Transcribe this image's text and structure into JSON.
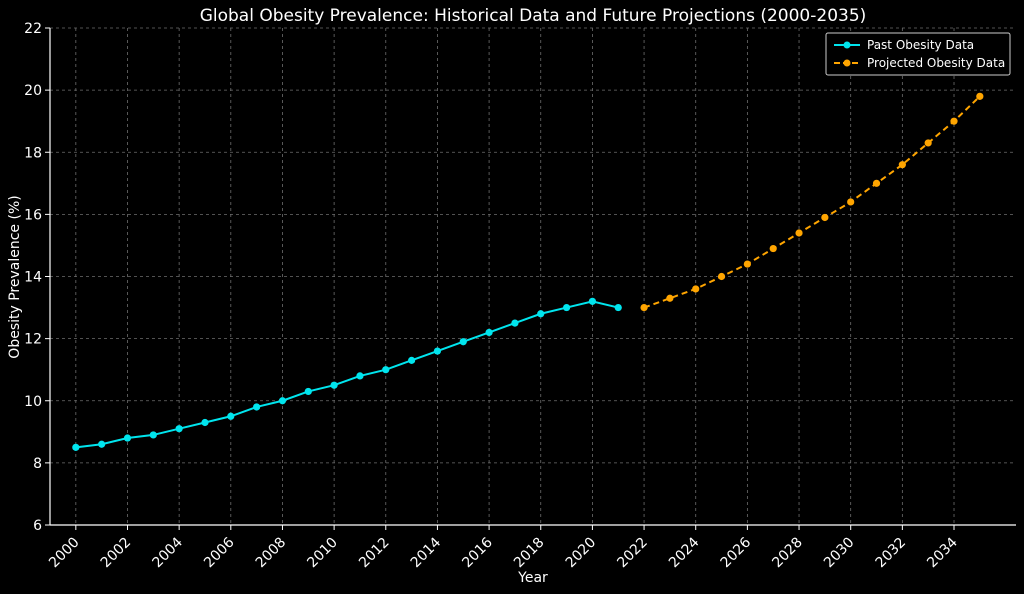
{
  "chart_data": {
    "type": "line",
    "title": "Global Obesity Prevalence: Historical Data and Future Projections (2000-2035)",
    "xlabel": "Year",
    "ylabel": "Obesity Prevalence (%)",
    "xlim": [
      1999,
      2036.4
    ],
    "ylim": [
      6,
      22
    ],
    "x_ticks": [
      "2000",
      "2002",
      "2004",
      "2006",
      "2008",
      "2010",
      "2012",
      "2014",
      "2016",
      "2018",
      "2020",
      "2022",
      "2024",
      "2026",
      "2028",
      "2030",
      "2032",
      "2034"
    ],
    "y_ticks": [
      "6",
      "8",
      "10",
      "12",
      "14",
      "16",
      "18",
      "20",
      "22"
    ],
    "grid": true,
    "legend_position": "top-right",
    "series": [
      {
        "name": "Past Obesity Data",
        "color": "#00e5ee",
        "line_style": "solid",
        "x": [
          2000,
          2001,
          2002,
          2003,
          2004,
          2005,
          2006,
          2007,
          2008,
          2009,
          2010,
          2011,
          2012,
          2013,
          2014,
          2015,
          2016,
          2017,
          2018,
          2019,
          2020,
          2021
        ],
        "y": [
          8.5,
          8.6,
          8.8,
          8.9,
          9.1,
          9.3,
          9.5,
          9.8,
          10.0,
          10.3,
          10.5,
          10.8,
          11.0,
          11.3,
          11.6,
          11.9,
          12.2,
          12.5,
          12.8,
          13.0,
          13.2,
          13.0
        ]
      },
      {
        "name": "Projected Obesity Data",
        "color": "#ffa500",
        "line_style": "dashed",
        "x": [
          2022,
          2023,
          2024,
          2025,
          2026,
          2027,
          2028,
          2029,
          2030,
          2031,
          2032,
          2033,
          2034,
          2035
        ],
        "y": [
          13.0,
          13.3,
          13.6,
          14.0,
          14.4,
          14.9,
          15.4,
          15.9,
          16.4,
          17.0,
          17.6,
          18.3,
          19.0,
          19.8
        ]
      }
    ]
  }
}
